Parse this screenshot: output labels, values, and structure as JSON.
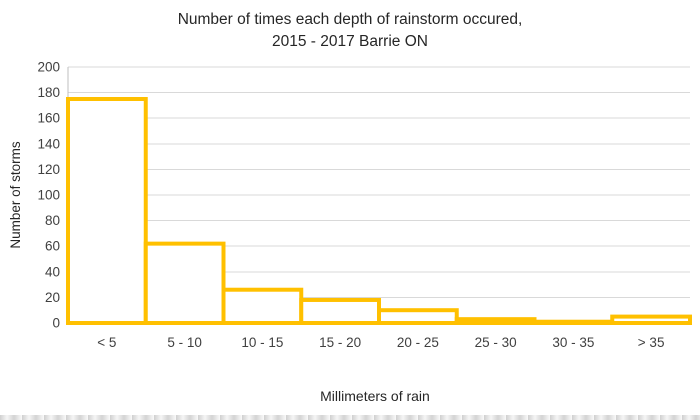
{
  "title": {
    "line1": "Number of times each depth of rainstorm occured,",
    "line2": "2015 - 2017 Barrie ON"
  },
  "chart_data": {
    "type": "bar",
    "subtype": "histogram",
    "title": "Number of times each depth of rainstorm occured, 2015 - 2017 Barrie ON",
    "categories": [
      "< 5",
      "5 - 10",
      "10 - 15",
      "15 - 20",
      "20 - 25",
      "25 - 30",
      "30 - 35",
      "> 35"
    ],
    "values": [
      175,
      62,
      26,
      18,
      10,
      3,
      1,
      5
    ],
    "xlabel": "Millimeters of rain",
    "ylabel": "Number of storms",
    "ylim": [
      0,
      200
    ],
    "ytick_step": 20,
    "yticks": [
      0,
      20,
      40,
      60,
      80,
      100,
      120,
      140,
      160,
      180,
      200
    ],
    "grid": true,
    "legend": "none",
    "bar_gap": 0
  },
  "colors": {
    "bar_stroke": "#FFC000",
    "bar_fill": "#FFFFFF",
    "gridline": "#D9D9D9",
    "axis_line": "#BFBFBF",
    "tick_text": "#404040",
    "title_text": "#262626",
    "background": "#FFFFFF"
  }
}
